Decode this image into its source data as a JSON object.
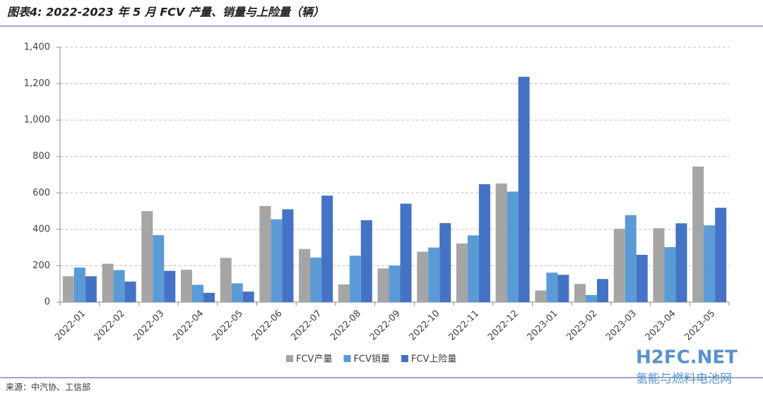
{
  "chart_data": {
    "type": "bar",
    "title": "图表4: 2022-2023 年 5 月 FCV 产量、销量与上险量（辆）",
    "source": "来源：中汽协、工信部",
    "watermark": [
      "H2FC.NET",
      "氢能与燃料电池网"
    ],
    "categories": [
      "2022-01",
      "2022-02",
      "2022-03",
      "2022-04",
      "2022-05",
      "2022-06",
      "2022-07",
      "2022-08",
      "2022-09",
      "2022-10",
      "2022-11",
      "2022-12",
      "2023-01",
      "2023-02",
      "2023-03",
      "2023-04",
      "2023-05"
    ],
    "series": [
      {
        "name": "FCV产量",
        "color": "#a5a5a5",
        "values": [
          142,
          211,
          500,
          178,
          243,
          528,
          292,
          97,
          185,
          277,
          322,
          652,
          64,
          100,
          403,
          406,
          745
        ]
      },
      {
        "name": "FCV销量",
        "color": "#5b9bd5",
        "values": [
          190,
          176,
          368,
          95,
          103,
          455,
          245,
          255,
          201,
          300,
          367,
          607,
          162,
          39,
          478,
          302,
          422
        ]
      },
      {
        "name": "FCV上险量",
        "color": "#4472c4",
        "values": [
          142,
          113,
          172,
          51,
          58,
          510,
          585,
          450,
          541,
          434,
          648,
          1238,
          150,
          127,
          260,
          433,
          518
        ]
      }
    ],
    "ylim": [
      0,
      1400
    ],
    "yticks": [
      0,
      200,
      400,
      600,
      800,
      {
        "value": 1000,
        "label": "1,000"
      },
      {
        "value": 1200,
        "label": "1,200"
      },
      {
        "value": 1400,
        "label": "1,400"
      }
    ],
    "grid": true,
    "legend": "bottom"
  }
}
